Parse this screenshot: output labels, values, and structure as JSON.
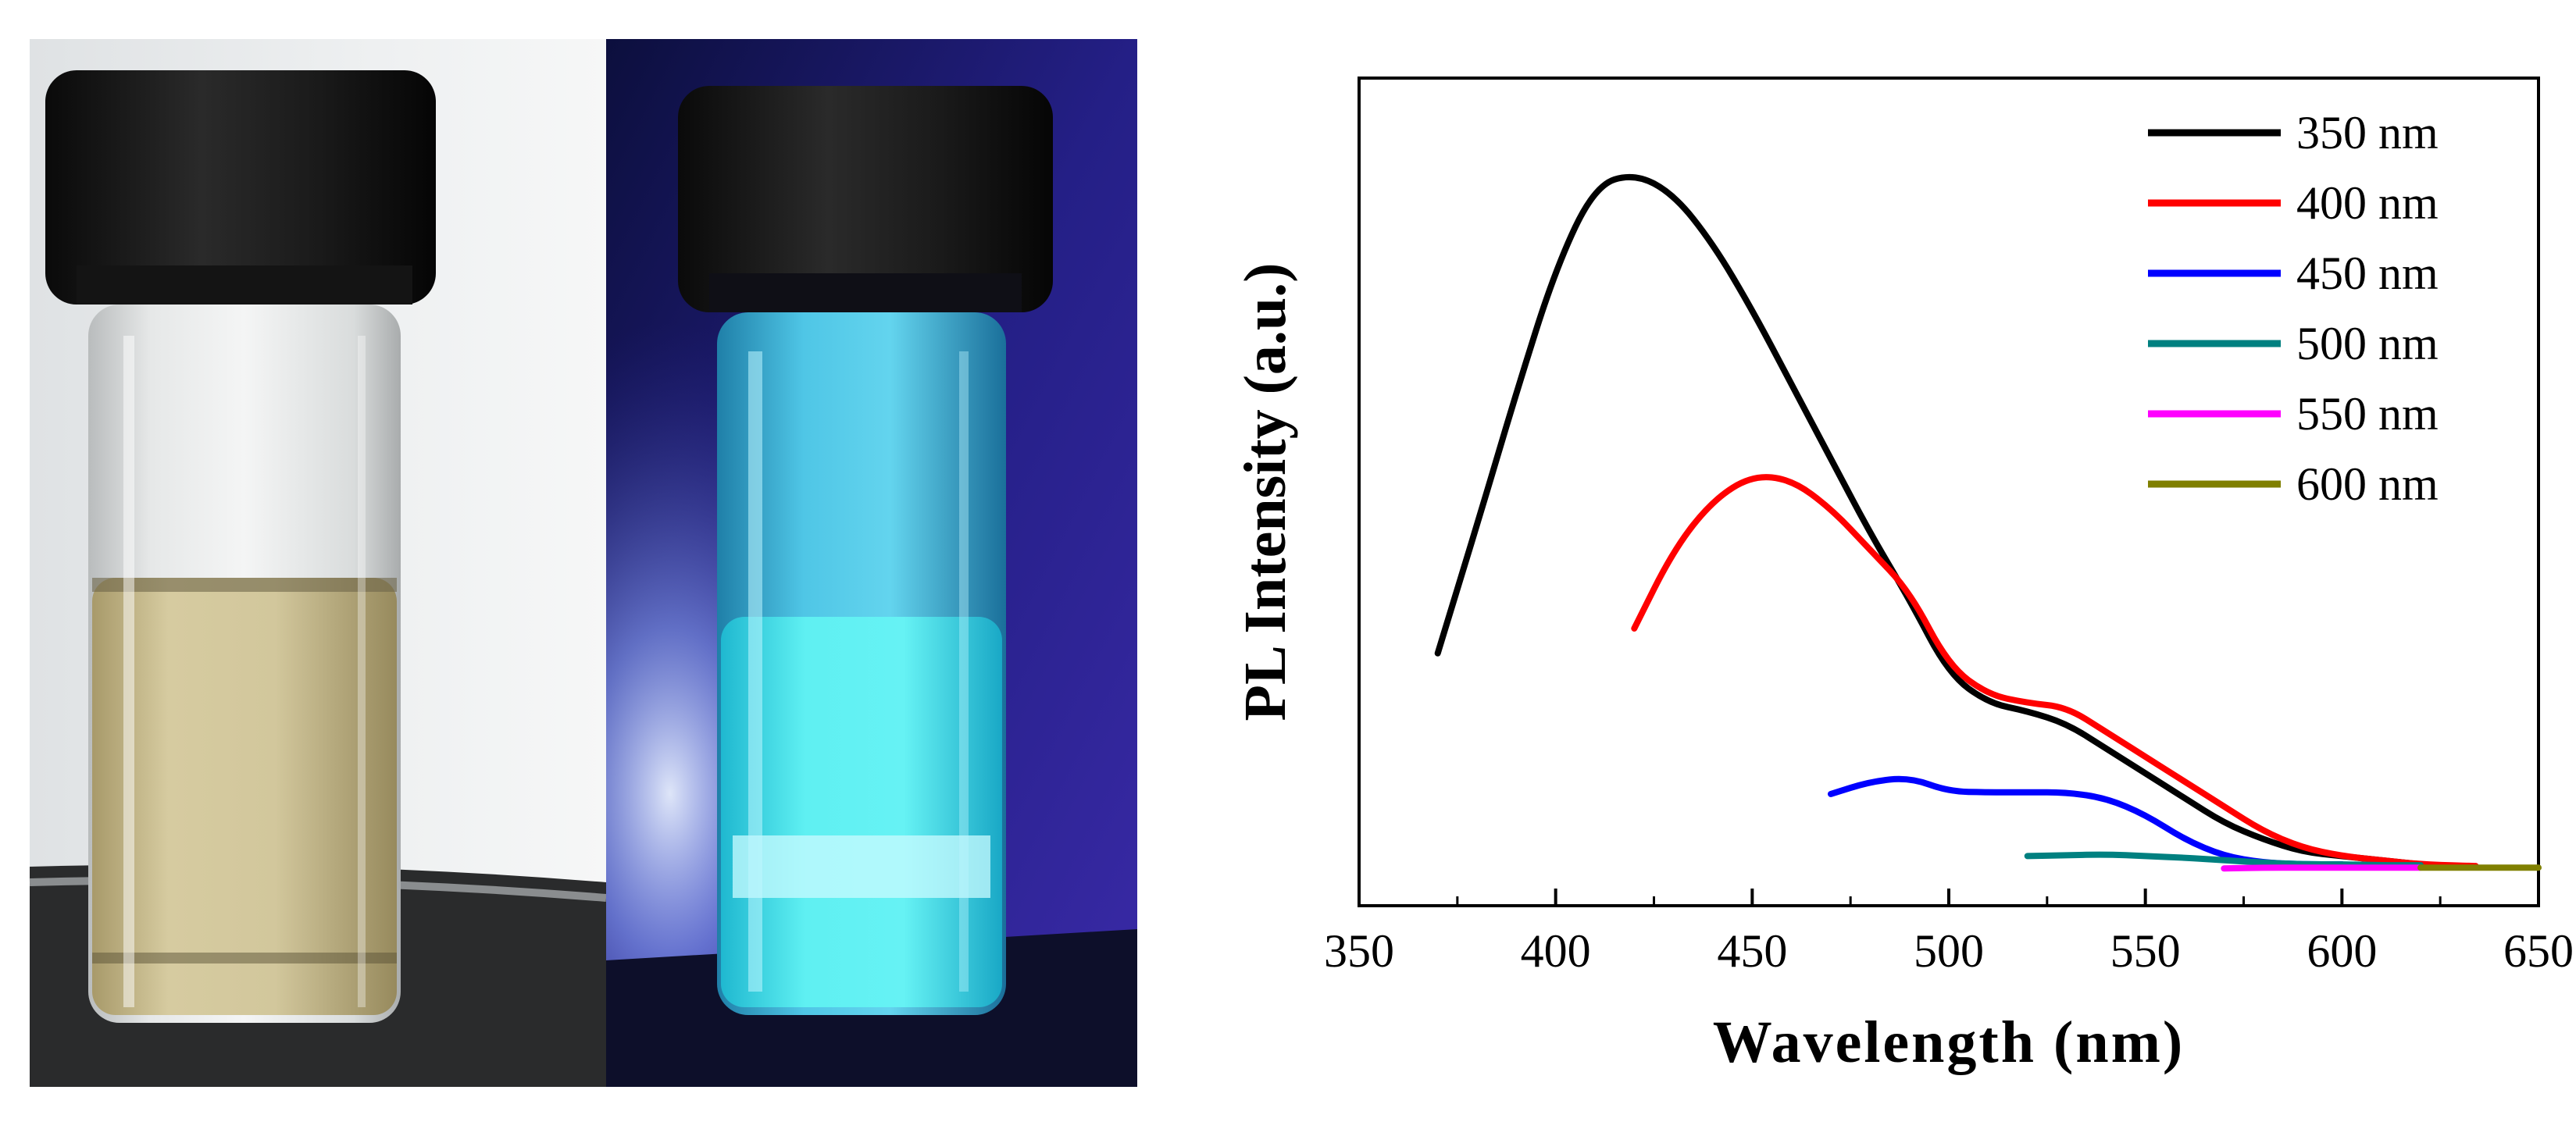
{
  "photos": {
    "panels": [
      {
        "name": "vial-daylight",
        "lighting": "ambient",
        "liquid_color": "#c9be8f",
        "background": "#e9ebec"
      },
      {
        "name": "vial-uv",
        "lighting": "uv",
        "liquid_color": "#41e6ea",
        "background": "#1a1b6e"
      }
    ]
  },
  "chart_data": {
    "type": "line",
    "title": "",
    "xlabel": "Wavelength (nm)",
    "ylabel": "PL Intensity (a.u.)",
    "xlim": [
      350,
      650
    ],
    "ylim": [
      0,
      1
    ],
    "xticks": [
      "350",
      "400",
      "450",
      "500",
      "550",
      "600",
      "650"
    ],
    "grid": false,
    "legend_position": "top-right",
    "series": [
      {
        "name": "350 nm",
        "color": "#000000",
        "x": [
          370,
          380,
          390,
          400,
          410,
          420,
          430,
          440,
          450,
          460,
          470,
          480,
          490,
          500,
          510,
          520,
          530,
          540,
          550,
          560,
          570,
          580,
          590,
          600,
          610,
          620
        ],
        "y": [
          0.305,
          0.46,
          0.62,
          0.77,
          0.87,
          0.885,
          0.86,
          0.8,
          0.72,
          0.63,
          0.54,
          0.45,
          0.37,
          0.28,
          0.245,
          0.235,
          0.22,
          0.19,
          0.16,
          0.13,
          0.1,
          0.08,
          0.065,
          0.06,
          0.055,
          0.05
        ]
      },
      {
        "name": "400 nm",
        "color": "#ff0000",
        "x": [
          420,
          430,
          440,
          450,
          460,
          470,
          480,
          490,
          500,
          510,
          520,
          530,
          540,
          550,
          560,
          570,
          580,
          590,
          600,
          610,
          620,
          634
        ],
        "y": [
          0.335,
          0.43,
          0.49,
          0.52,
          0.515,
          0.48,
          0.43,
          0.38,
          0.29,
          0.255,
          0.245,
          0.24,
          0.21,
          0.18,
          0.15,
          0.12,
          0.09,
          0.07,
          0.06,
          0.055,
          0.05,
          0.048
        ]
      },
      {
        "name": "450 nm",
        "color": "#0000ff",
        "x": [
          470,
          480,
          490,
          500,
          510,
          520,
          530,
          540,
          550,
          560,
          570,
          580,
          590,
          600
        ],
        "y": [
          0.135,
          0.15,
          0.155,
          0.138,
          0.137,
          0.137,
          0.137,
          0.13,
          0.11,
          0.08,
          0.06,
          0.052,
          0.05,
          0.05
        ]
      },
      {
        "name": "500 nm",
        "color": "#008080",
        "x": [
          520,
          530,
          540,
          550,
          560,
          570,
          580,
          590,
          600,
          610,
          620
        ],
        "y": [
          0.06,
          0.061,
          0.062,
          0.06,
          0.058,
          0.055,
          0.052,
          0.05,
          0.05,
          0.049,
          0.049
        ]
      },
      {
        "name": "550 nm",
        "color": "#ff00ff",
        "x": [
          570,
          580,
          590,
          600,
          610,
          620
        ],
        "y": [
          0.045,
          0.046,
          0.046,
          0.046,
          0.046,
          0.046
        ]
      },
      {
        "name": "600 nm",
        "color": "#808000",
        "x": [
          620,
          630,
          640,
          650
        ],
        "y": [
          0.046,
          0.046,
          0.046,
          0.046
        ]
      }
    ]
  }
}
